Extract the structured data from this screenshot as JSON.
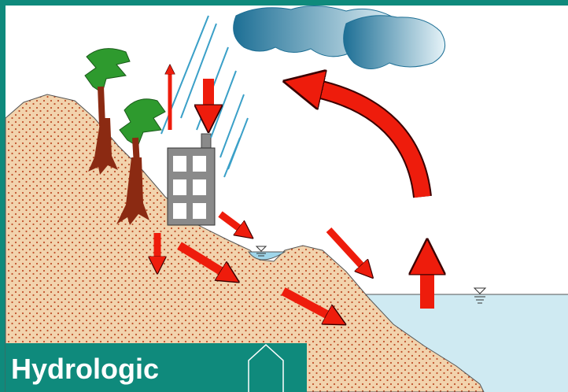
{
  "caption": "Hydrologic"
}
